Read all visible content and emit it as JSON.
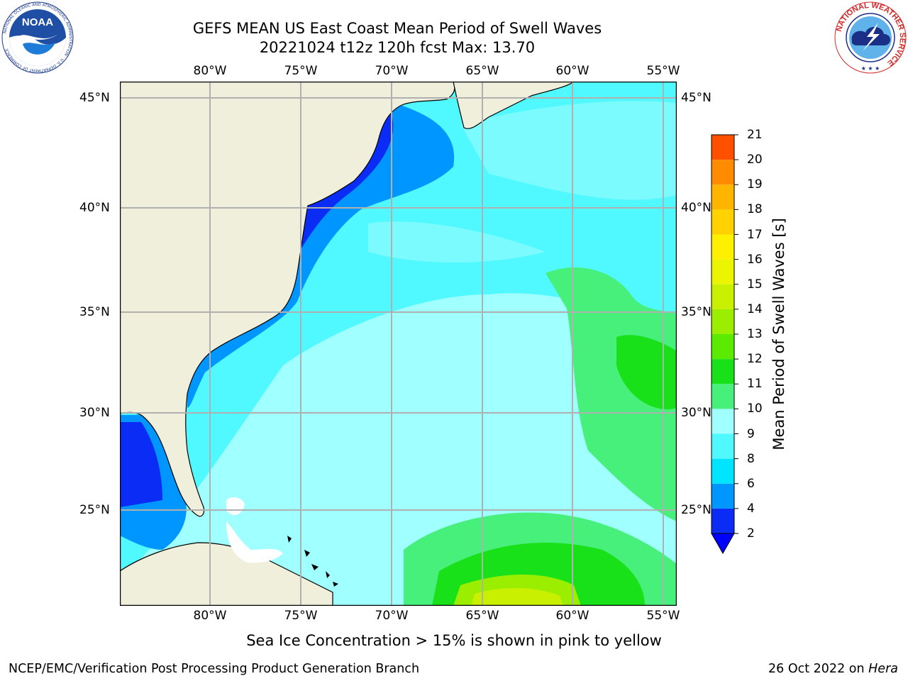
{
  "header": {
    "title_line1": "GEFS MEAN US East Coast Mean Period of Swell Waves",
    "title_line2": "20221024 t12z 120h fcst   Max: 13.70"
  },
  "logos": {
    "noaa": {
      "text": "NOAA",
      "ring_text": "NATIONAL OCEANIC AND ATMOSPHERIC ADMINISTRATION · U.S. DEPARTMENT OF COMMERCE"
    },
    "nws": {
      "ring_text": "NATIONAL WEATHER SERVICE"
    }
  },
  "map": {
    "lon_ticks": [
      "80°W",
      "75°W",
      "70°W",
      "65°W",
      "60°W",
      "55°W"
    ],
    "lat_ticks": [
      "45°N",
      "40°N",
      "35°N",
      "30°N",
      "25°N"
    ],
    "colors": {
      "land": "#efefdc",
      "grid": "#b0b0b0",
      "coast": "#000000"
    }
  },
  "colorbar": {
    "title": "Mean Period of Swell Waves [s]",
    "ticks": [
      "2",
      "4",
      "6",
      "8",
      "9",
      "10",
      "11",
      "12",
      "13",
      "14",
      "15",
      "16",
      "17",
      "18",
      "19",
      "20",
      "21"
    ],
    "colors": [
      "#0a2cf5",
      "#0096ff",
      "#00e5ff",
      "#50f8ff",
      "#a0ffff",
      "#46f07a",
      "#19e119",
      "#5aeb00",
      "#9bee00",
      "#c8f000",
      "#ebf500",
      "#fff000",
      "#ffd200",
      "#ffb400",
      "#ff8c00",
      "#ff5000",
      "#ff1e00",
      "#ff0000"
    ],
    "under_color": "#0000ff"
  },
  "footer": {
    "note": "Sea Ice Concentration > 15% is shown in pink to yellow",
    "credit_left": "NCEP/EMC/Verification Post Processing Product Generation Branch",
    "credit_date": "26 Oct 2022 on ",
    "credit_machine": "Hera"
  }
}
